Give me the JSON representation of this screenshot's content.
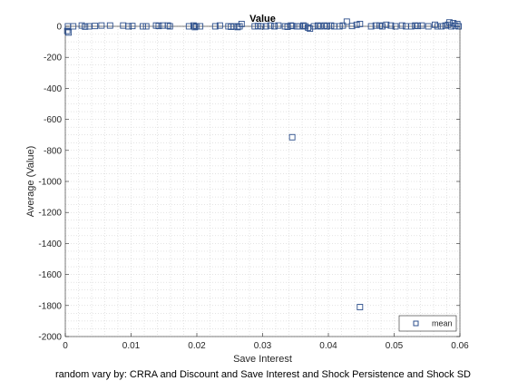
{
  "chart_data": {
    "type": "scatter",
    "title": "Value",
    "xlabel": "Save Interest",
    "ylabel": "Average (Value)",
    "xlim": [
      0,
      0.06
    ],
    "ylim": [
      -2000,
      0
    ],
    "xticks": [
      0,
      0.01,
      0.02,
      0.03,
      0.04,
      0.05,
      0.06
    ],
    "xtick_labels": [
      "0",
      "0.01",
      "0.02",
      "0.03",
      "0.04",
      "0.05",
      "0.06"
    ],
    "yticks": [
      -2000,
      -1800,
      -1600,
      -1400,
      -1200,
      -1000,
      -800,
      -600,
      -400,
      -200,
      0
    ],
    "ytick_labels": [
      "-2000",
      "-1800",
      "-1600",
      "-1400",
      "-1200",
      "-1000",
      "-800",
      "-600",
      "-400",
      "-200",
      "0"
    ],
    "grid": "minor dotted",
    "legend_position": "bottom-right",
    "marker": "square",
    "marker_color": "#2c4f8c",
    "caption": "random vary by: CRRA and Discount and Save Interest and Shock Persistence and Shock SD",
    "series": [
      {
        "name": "mean",
        "x": [
          0.0003,
          0.0005,
          0.0004,
          0.0012,
          0.0025,
          0.003,
          0.0036,
          0.0045,
          0.0055,
          0.0068,
          0.0088,
          0.0096,
          0.0102,
          0.0118,
          0.0123,
          0.0138,
          0.0142,
          0.0148,
          0.0156,
          0.0159,
          0.0188,
          0.0195,
          0.0197,
          0.0199,
          0.0205,
          0.0228,
          0.0235,
          0.0248,
          0.0252,
          0.0256,
          0.0262,
          0.0265,
          0.0268,
          0.0288,
          0.0293,
          0.0298,
          0.0305,
          0.0312,
          0.0318,
          0.0324,
          0.0334,
          0.0338,
          0.0343,
          0.0345,
          0.0352,
          0.0356,
          0.0362,
          0.0365,
          0.0369,
          0.0372,
          0.0378,
          0.0384,
          0.0388,
          0.0394,
          0.0398,
          0.0404,
          0.0409,
          0.0417,
          0.0422,
          0.0428,
          0.0436,
          0.0443,
          0.0448,
          0.0465,
          0.0472,
          0.0478,
          0.0482,
          0.0488,
          0.0495,
          0.0502,
          0.0512,
          0.0518,
          0.0526,
          0.0532,
          0.0536,
          0.0542,
          0.0552,
          0.0562,
          0.0566,
          0.0572,
          0.0578,
          0.0582,
          0.0584,
          0.0587,
          0.059,
          0.0593,
          0.0596,
          0.0598,
          0.0345,
          0.0448
        ],
        "y": [
          -30,
          -40,
          0,
          0,
          5,
          -2,
          0,
          2,
          5,
          5,
          5,
          0,
          2,
          0,
          0,
          5,
          2,
          5,
          5,
          0,
          0,
          5,
          -5,
          0,
          0,
          0,
          5,
          0,
          -3,
          0,
          -5,
          0,
          15,
          0,
          2,
          0,
          0,
          5,
          0,
          5,
          0,
          -3,
          5,
          2,
          0,
          0,
          5,
          0,
          -8,
          -15,
          0,
          5,
          0,
          5,
          0,
          5,
          0,
          0,
          5,
          30,
          2,
          10,
          15,
          0,
          5,
          5,
          0,
          10,
          5,
          0,
          5,
          0,
          0,
          5,
          2,
          5,
          0,
          10,
          0,
          0,
          5,
          10,
          25,
          0,
          20,
          5,
          15,
          0,
          -715,
          -1810
        ]
      }
    ]
  }
}
